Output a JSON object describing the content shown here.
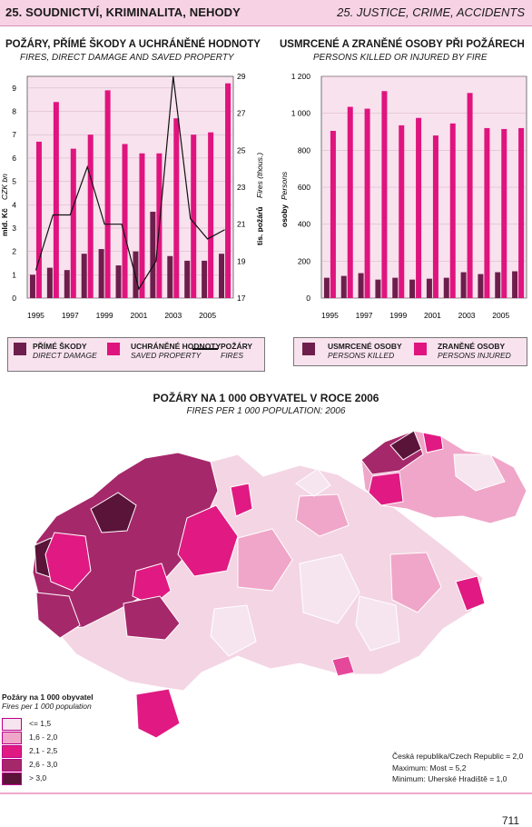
{
  "header": {
    "left": "25. SOUDNICTVÍ, KRIMINALITA, NEHODY",
    "right": "25. JUSTICE, CRIME, ACCIDENTS"
  },
  "colors": {
    "dark": "#6e1e4c",
    "pink": "#e0147e",
    "panel": "#f8e2ee",
    "c1": "#f6e5ef",
    "c2": "#f0a6c8",
    "c3": "#e01a82",
    "c4": "#a5286a",
    "c5": "#5a1339"
  },
  "chart_data": [
    {
      "type": "bar",
      "title": "POŽÁRY, PŘÍMÉ ŠKODY A UCHRÁNĚNÉ HODNOTY",
      "subtitle": "FIRES, DIRECT DAMAGE AND SAVED PROPERTY",
      "x": [
        1995,
        1996,
        1997,
        1998,
        1999,
        2000,
        2001,
        2002,
        2003,
        2004,
        2005,
        2006
      ],
      "xticks": [
        "1995",
        "1997",
        "1999",
        "2001",
        "2003",
        "2005"
      ],
      "ylabel_left": "mld. Kč",
      "ylabel_left_en": "CZK bn",
      "ylabel_right": "tis. požárů",
      "ylabel_right_en": "Fires (thous.)",
      "ylim": [
        0,
        9.5
      ],
      "yticks": [
        "0",
        "1",
        "2",
        "3",
        "4",
        "5",
        "6",
        "7",
        "8",
        "9"
      ],
      "y2lim": [
        17,
        29
      ],
      "y2ticks": [
        "17",
        "19",
        "21",
        "23",
        "25",
        "27",
        "29"
      ],
      "series": [
        {
          "name": "PŘÍMÉ ŠKODY",
          "name_en": "DIRECT DAMAGE",
          "values": [
            1.0,
            1.3,
            1.2,
            1.9,
            2.1,
            1.4,
            2.0,
            3.7,
            1.8,
            1.6,
            1.6,
            1.9
          ]
        },
        {
          "name": "UCHRÁNĚNÉ HODNOTY",
          "name_en": "SAVED PROPERTY",
          "values": [
            6.7,
            8.4,
            6.4,
            7.0,
            8.9,
            6.6,
            6.2,
            6.2,
            7.7,
            7.0,
            7.1,
            9.2
          ]
        },
        {
          "name": "POŽÁRY",
          "name_en": "FIRES",
          "type": "line",
          "values": [
            18.5,
            21.5,
            21.5,
            24.1,
            21.0,
            21.0,
            17.5,
            19.0,
            29.0,
            21.3,
            20.2,
            20.7
          ]
        }
      ]
    },
    {
      "type": "bar",
      "title": "USMRCENÉ A ZRANĚNÉ OSOBY PŘI POŽÁRECH",
      "subtitle": "PERSONS KILLED OR INJURED BY FIRE",
      "x": [
        1995,
        1996,
        1997,
        1998,
        1999,
        2000,
        2001,
        2002,
        2003,
        2004,
        2005,
        2006
      ],
      "xticks": [
        "1995",
        "1997",
        "1999",
        "2001",
        "2003",
        "2005"
      ],
      "ylabel": "osoby",
      "ylabel_en": "Persons",
      "ylim": [
        0,
        1200
      ],
      "yticks": [
        "0",
        "200",
        "400",
        "600",
        "800",
        "1 000",
        "1 200"
      ],
      "series": [
        {
          "name": "USMRCENÉ OSOBY",
          "name_en": "PERSONS KILLED",
          "values": [
            110,
            120,
            135,
            100,
            110,
            100,
            105,
            110,
            140,
            130,
            140,
            145
          ]
        },
        {
          "name": "ZRANĚNÉ OSOBY",
          "name_en": "PERSONS INJURED",
          "values": [
            905,
            1035,
            1025,
            1120,
            935,
            975,
            880,
            945,
            1110,
            920,
            915,
            920
          ]
        }
      ]
    }
  ],
  "map": {
    "title": "POŽÁRY NA 1 000 OBYVATEL V ROCE 2006",
    "subtitle": "FIRES PER 1 000 POPULATION: 2006",
    "legend_title": "Požáry na 1 000 obyvatel",
    "legend_title_en": "Fires per 1 000 population",
    "classes": [
      "<= 1,5",
      "1,6 - 2,0",
      "2,1 - 2,5",
      "2,6 - 3,0",
      "> 3,0"
    ],
    "note1": "Česká republika/Czech Republic = 2,0",
    "note2": "Maximum: Most = 5,2",
    "note3": "Minimum: Uherské Hradiště = 1,0"
  },
  "page_number": "711"
}
